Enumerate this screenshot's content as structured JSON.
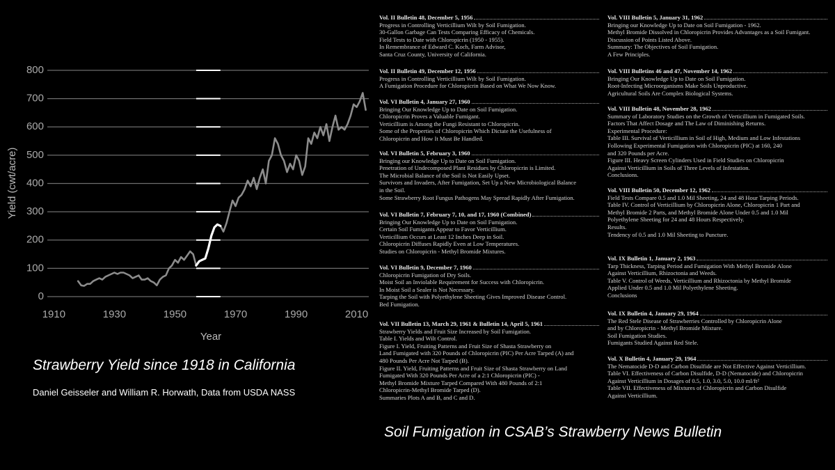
{
  "chart_data": {
    "type": "line",
    "xlabel": "Year",
    "ylabel": "Yield (cwt/acre)",
    "xlim": [
      1906,
      2014
    ],
    "xticks": [
      1910,
      1930,
      1950,
      1970,
      1990,
      2010
    ],
    "ylim": [
      0,
      800
    ],
    "yticks": [
      0,
      100,
      200,
      300,
      400,
      500,
      600,
      700,
      800
    ],
    "grid": true,
    "x": [
      1918,
      1919,
      1920,
      1921,
      1922,
      1923,
      1924,
      1925,
      1926,
      1927,
      1928,
      1929,
      1930,
      1931,
      1932,
      1933,
      1934,
      1935,
      1936,
      1937,
      1938,
      1939,
      1940,
      1941,
      1942,
      1943,
      1944,
      1945,
      1946,
      1947,
      1948,
      1949,
      1950,
      1951,
      1952,
      1953,
      1954,
      1955,
      1956,
      1957,
      1958,
      1959,
      1960,
      1961,
      1962,
      1963,
      1964,
      1965,
      1966,
      1967,
      1968,
      1969,
      1970,
      1971,
      1972,
      1973,
      1974,
      1975,
      1976,
      1977,
      1978,
      1979,
      1980,
      1981,
      1982,
      1983,
      1984,
      1985,
      1986,
      1987,
      1988,
      1989,
      1990,
      1991,
      1992,
      1993,
      1994,
      1995,
      1996,
      1997,
      1998,
      1999,
      2000,
      2001,
      2002,
      2003,
      2004,
      2005,
      2006,
      2007,
      2008,
      2009,
      2010,
      2011,
      2012,
      2013
    ],
    "series": [
      {
        "color": "#8c8c8c",
        "values": [
          55,
          40,
          38,
          45,
          45,
          55,
          60,
          65,
          60,
          70,
          75,
          80,
          85,
          80,
          85,
          85,
          80,
          75,
          65,
          70,
          75,
          60,
          60,
          65,
          55,
          50,
          40,
          60,
          70,
          75,
          100,
          110,
          130,
          120,
          140,
          130,
          145,
          160,
          150,
          110,
          null,
          null,
          null,
          null,
          null,
          null,
          null,
          250,
          230,
          260,
          300,
          340,
          320,
          350,
          360,
          380,
          410,
          390,
          420,
          380,
          420,
          450,
          400,
          480,
          500,
          560,
          540,
          500,
          480,
          440,
          470,
          450,
          500,
          480,
          430,
          460,
          560,
          540,
          580,
          560,
          600,
          570,
          610,
          550,
          600,
          640,
          590,
          600,
          590,
          610,
          640,
          680,
          670,
          690,
          720,
          660
        ]
      },
      {
        "color": "#ffffff",
        "values": [
          null,
          null,
          null,
          null,
          null,
          null,
          null,
          null,
          null,
          null,
          null,
          null,
          null,
          null,
          null,
          null,
          null,
          null,
          null,
          null,
          null,
          null,
          null,
          null,
          null,
          null,
          null,
          null,
          null,
          null,
          null,
          null,
          null,
          null,
          null,
          null,
          null,
          null,
          null,
          110,
          125,
          130,
          135,
          170,
          215,
          245,
          255,
          250,
          null,
          null,
          null,
          null,
          null,
          null,
          null,
          null,
          null,
          null,
          null,
          null,
          null,
          null,
          null,
          null,
          null,
          null,
          null,
          null,
          null,
          null,
          null,
          null,
          null,
          null,
          null,
          null,
          null,
          null,
          null,
          null,
          null,
          null,
          null,
          null,
          null,
          null,
          null,
          null,
          null,
          null,
          null,
          null,
          null,
          null,
          null,
          null
        ]
      }
    ]
  },
  "captions": {
    "chart_title": "Strawberry Yield since 1918 in California",
    "credit": "Daniel Geisseler and William R. Horwath, Data from USDA NASS",
    "document_title": "Soil Fumigation in CSAB’s Strawberry News Bulletin"
  },
  "document": {
    "columns": [
      [
        {
          "heading": "Vol. II Bulletin 48, December 5, 1956",
          "lines": [
            "Progress in Controlling Verticillium Wilt by Soil Fumigation.",
            "30-Gallon Garbage Can Tests Comparing Efficacy of Chemicals.",
            "Field Tests to Date with Chloropicrin (1950 - 1955).",
            "In Remembrance of Edward C. Koch, Farm Advisor,",
            "Santa Cruz County, University of California."
          ]
        },
        {
          "heading": "Vol. II Bulletin 49, December 12, 1956",
          "lines": [
            "Progress in Controlling Verticillium Wilt by Soil Fumigation.",
            "A Fumigation Procedure for Chloropicrin Based on What We Now Know."
          ]
        },
        {
          "heading": "Vol. VI Bulletin 4, January 27, 1960",
          "lines": [
            "Bringing Our Knowledge Up to Date on Soil Fumigation.",
            "Chloropicrin Proves a Valuable Fumigant.",
            "Verticillium is Among the Fungi Resistant to Chloropicrin.",
            "Some of the Properties of Chloropicrin Which Dictate the Usefulness of",
            "Chloropicrin and How It Must Be Handled."
          ]
        },
        {
          "heading": "Vol. VI Bulletin 5, February 3, 1960",
          "lines": [
            "Bringing our Knowledge Up to Date on Soil Fumigation.",
            "Penetration of Undecomposed Plant Residues by Chloropicrin is Limited.",
            "The Microbial Balance of the Soil is Not Easily Upset.",
            "Survivors and Invaders, After Fumigation, Set Up a New Microbiological Balance",
            "in the Soil.",
            "Some Strawberry Root Fungus Pathogens May Spread Rapidly After Fumigation."
          ]
        },
        {
          "heading": "Vol. VI Bulletin 7, February 7, 10, and 17, 1960 (Combined)",
          "lines": [
            "Bringing Our Knowledge Up to Date on Soil Fumigation.",
            "Certain Soil Fumigants Appear to Favor Verticillium.",
            "Verticillium Occurs at Least 12 Inches Deep in Soil.",
            "Chloropicrin Diffuses Rapidly Even at Low Temperatures.",
            "Studies on Chloropicrin - Methyl Bromide Mixtures."
          ]
        },
        {
          "heading": "Vol. VI Bulletin 9, December 7, 1960",
          "lines": [
            "Chloropicrin Fumigation of Dry Soils.",
            "Moist Soil an Inviolable Requirement for Success with Chloropicrin.",
            "In Moist Soil a Sealer is Not Necessary.",
            "Tarping the Soil with Polyethylene Sheeting Gives Improved Disease Control.",
            "Bed Fumigation."
          ]
        },
        {
          "heading": "Vol. VII Bulletin 13, March 29, 1961 & Bulletin 14, April 5, 1961",
          "lines": [
            "Strawberry Yields and Fruit Size Increased by Soil Fumigation.",
            "Table I. Yields and Wilt Control.",
            "Figure I. Yield, Fruiting Patterns and Fruit Size of Shasta Strawberry on",
            "Land Fumigated with 320 Pounds of Chloropicrin (PIC) Per Acre Tarped (A) and",
            "480 Pounds Per Acre Not Tarped (B).",
            "Figure II. Yield, Fruiting Patterns and Fruit Size of Shasta Strawberry on Land",
            "Fumigated With 320 Pounds Per Acre of a 2:1 Chloropicrin (PIC) -",
            "Methyl Bromide Mixture Tarped Compared With 480 Pounds of 2:1",
            "Chloropicrin-Methyl Bromide Tarped (D).",
            "Summaries Plots A and B, and C and D."
          ]
        }
      ],
      [
        {
          "heading": "Vol. VIII Bulletin 5, January 31, 1962",
          "lines": [
            "Bringing our Knowledge Up to Date on Soil Fumigation - 1962.",
            "Methyl Bromide Dissolved in Chloropicrin Provides Advantages as a Soil Fumigant.",
            "Discussion of Points Listed Above.",
            "Summary: The Objectives of Soil Fumigation.",
            "A Few Principles."
          ]
        },
        {
          "heading": "Vol. VIII Bulletins 46 and 47, November 14, 1962",
          "lines": [
            "Bringing Our Knowledge Up to Date on Soil Fumigation.",
            "Root-Infecting Microorganisms Make Soils Unproductive.",
            "Agricultural Soils Are Complex Biological Systems."
          ]
        },
        {
          "heading": "Vol. VIII Bulletin 48, November 28, 1962",
          "lines": [
            "Summary of Laboratory Studies on the Growth of Verticillium in Fumigated Soils.",
            "Factors That Affect Dosage and The Law of Diminishing Returns.",
            "Experimental Procedure:",
            "Table III. Survival of Verticillium in Soil of High, Medium and Low Infestations",
            "Following Experimental Fumigation with Chloropicrin (PIC) at 160, 240",
            "and 320 Pounds per Acre.",
            "Figure III. Heavy Screen Cylinders Used in Field Studies on Chloropicrin",
            "Against Verticillium in Soils of Three Levels of Infestation.",
            "Conclusions."
          ]
        },
        {
          "heading": "Vol. VIII Bulletin 50, December 12, 1962",
          "lines": [
            "Field Tests Compare 0.5 and 1.0 Mil Sheeting, 24 and 48 Hour Tarping Periods.",
            "Table IV. Control of Verticillium by Chloropicrin Alone, Chloropicrin 1 Part and",
            "Methyl Bromide 2 Parts, and Methyl Bromide Alone Under 0.5 and 1.0 Mil",
            "Polyethylene Sheeting for 24 and 48 Hours Respectively.",
            "Results.",
            "Tendency of 0.5 and 1.0 Mil Sheeting to Puncture."
          ]
        },
        {
          "heading": "Vol. IX Bulletin 1, January 2, 1963",
          "lines": [
            "Tarp Thickness, Tarping Period and Fumigation With Methyl Bromide Alone",
            "Against Verticillium, Rhizoctonia and Weeds.",
            "Table V. Control of Weeds, Verticillium and Rhizoctonia by Methyl Bromide",
            "Applied Under 0.5 and 1.0 Mil Polyethylene Sheeting.",
            "Conclusions"
          ]
        },
        {
          "heading": "Vol. IX Bulletin 4, January 29, 1964",
          "lines": [
            "The Red Stele Disease of Strawberries Controlled by Chloropicrin Alone",
            "and by Chloropicrin - Methyl Bromide Mixture.",
            "Soil Fumigation Studies.",
            "Fumigants Studied Against Red Stele."
          ]
        },
        {
          "heading": "Vol. X Bulletin 4, January 29, 1964",
          "lines": [
            "The Nematocide D-D and Carbon Disulfide are Not Effective Against Verticillium.",
            "Table VI. Effectiveness of Carbon Disulfide, D-D (Nematocide) and Chloropicrin",
            "Against Verticillium in Dosages of 0.5, 1.0, 3.0, 5.0, 10.0 ml/ft²",
            "Table VII. Effectiveness of Mixtures of Chloropicrin and Carbon Disulfide",
            "Against Verticillium."
          ]
        }
      ]
    ]
  }
}
